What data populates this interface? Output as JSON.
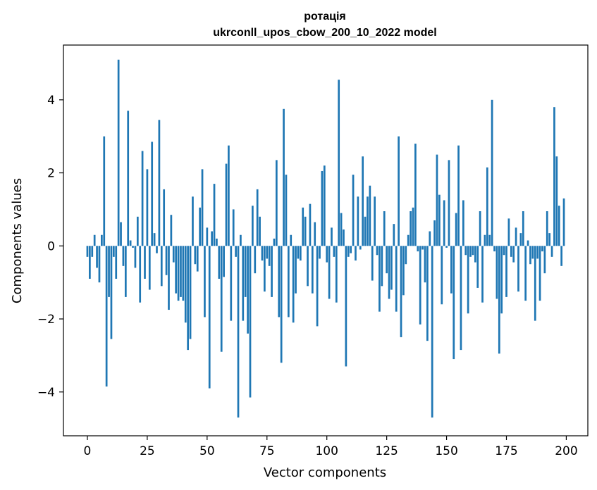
{
  "chart_data": {
    "type": "bar",
    "title": "ротація",
    "subtitle": "ukrconll_upos_cbow_200_10_2022 model",
    "xlabel": "Vector components",
    "ylabel": "Components values",
    "xlim": [
      -10,
      209
    ],
    "ylim": [
      -5.2,
      5.5
    ],
    "x_ticks": [
      0,
      25,
      50,
      75,
      100,
      125,
      150,
      175,
      200
    ],
    "y_ticks": [
      -4,
      -2,
      0,
      2,
      4
    ],
    "x_tick_labels": [
      "0",
      "25",
      "50",
      "75",
      "100",
      "125",
      "150",
      "175",
      "200"
    ],
    "y_tick_labels": [
      "−4",
      "−2",
      "0",
      "2",
      "4"
    ],
    "bar_color": "#1f77b4",
    "grid": false,
    "x": [
      0,
      1,
      2,
      3,
      4,
      5,
      6,
      7,
      8,
      9,
      10,
      11,
      12,
      13,
      14,
      15,
      16,
      17,
      18,
      19,
      20,
      21,
      22,
      23,
      24,
      25,
      26,
      27,
      28,
      29,
      30,
      31,
      32,
      33,
      34,
      35,
      36,
      37,
      38,
      39,
      40,
      41,
      42,
      43,
      44,
      45,
      46,
      47,
      48,
      49,
      50,
      51,
      52,
      53,
      54,
      55,
      56,
      57,
      58,
      59,
      60,
      61,
      62,
      63,
      64,
      65,
      66,
      67,
      68,
      69,
      70,
      71,
      72,
      73,
      74,
      75,
      76,
      77,
      78,
      79,
      80,
      81,
      82,
      83,
      84,
      85,
      86,
      87,
      88,
      89,
      90,
      91,
      92,
      93,
      94,
      95,
      96,
      97,
      98,
      99,
      100,
      101,
      102,
      103,
      104,
      105,
      106,
      107,
      108,
      109,
      110,
      111,
      112,
      113,
      114,
      115,
      116,
      117,
      118,
      119,
      120,
      121,
      122,
      123,
      124,
      125,
      126,
      127,
      128,
      129,
      130,
      131,
      132,
      133,
      134,
      135,
      136,
      137,
      138,
      139,
      140,
      141,
      142,
      143,
      144,
      145,
      146,
      147,
      148,
      149,
      150,
      151,
      152,
      153,
      154,
      155,
      156,
      157,
      158,
      159,
      160,
      161,
      162,
      163,
      164,
      165,
      166,
      167,
      168,
      169,
      170,
      171,
      172,
      173,
      174,
      175,
      176,
      177,
      178,
      179,
      180,
      181,
      182,
      183,
      184,
      185,
      186,
      187,
      188,
      189,
      190,
      191,
      192,
      193,
      194,
      195,
      196,
      197,
      198,
      199
    ],
    "values": [
      -0.3,
      -0.9,
      -0.3,
      0.3,
      -0.6,
      -1.0,
      0.3,
      3.0,
      -3.85,
      -1.4,
      -2.55,
      -0.3,
      -0.9,
      5.1,
      0.65,
      -0.55,
      -1.4,
      3.7,
      0.15,
      -0.05,
      -0.6,
      0.8,
      -1.55,
      2.6,
      -0.9,
      2.1,
      -1.2,
      2.85,
      0.35,
      -0.2,
      3.45,
      -1.1,
      1.55,
      -0.8,
      -1.75,
      0.85,
      -0.45,
      -1.3,
      -1.5,
      -1.4,
      -1.5,
      -2.1,
      -2.85,
      -2.55,
      1.35,
      -0.5,
      -0.7,
      1.05,
      2.1,
      -1.95,
      0.5,
      -3.9,
      0.4,
      1.7,
      0.2,
      -0.9,
      -2.9,
      -0.85,
      2.25,
      2.75,
      -2.05,
      1.0,
      -0.3,
      -4.7,
      0.3,
      -2.05,
      -1.4,
      -2.4,
      -4.15,
      1.1,
      -0.75,
      1.55,
      0.8,
      -0.4,
      -1.25,
      -0.35,
      -0.55,
      -1.4,
      0.2,
      2.35,
      -1.95,
      -3.2,
      3.75,
      1.95,
      -1.95,
      0.3,
      -2.1,
      -1.3,
      -0.35,
      -0.4,
      1.05,
      0.8,
      -1.1,
      1.15,
      -1.3,
      0.65,
      -2.2,
      -0.35,
      2.05,
      2.2,
      -0.45,
      -1.45,
      0.5,
      -0.3,
      -1.55,
      4.55,
      0.9,
      0.45,
      -3.3,
      -0.3,
      -0.2,
      1.95,
      -0.4,
      1.35,
      -0.1,
      2.45,
      0.8,
      1.35,
      1.65,
      -0.95,
      1.35,
      -0.25,
      -1.8,
      -1.1,
      0.95,
      -0.75,
      -1.45,
      -1.2,
      0.6,
      -1.8,
      3.0,
      -2.5,
      -1.35,
      -0.5,
      0.3,
      0.95,
      1.05,
      2.8,
      -0.15,
      -2.15,
      -0.1,
      -1.0,
      -2.6,
      0.4,
      -4.7,
      0.7,
      2.5,
      1.4,
      -1.6,
      1.25,
      -0.05,
      2.35,
      -1.3,
      -3.1,
      0.9,
      2.75,
      -2.85,
      1.25,
      -0.25,
      -1.85,
      -0.3,
      -0.25,
      -0.45,
      -1.15,
      0.95,
      -1.55,
      0.3,
      2.15,
      0.3,
      4.0,
      -0.15,
      -1.45,
      -2.95,
      -1.85,
      -0.25,
      -1.4,
      0.75,
      -0.3,
      -0.45,
      0.5,
      -1.25,
      0.35,
      0.95,
      -1.5,
      0.15,
      -0.5,
      -0.35,
      -2.05,
      -0.35,
      -1.5,
      -0.15,
      -0.75,
      0.95,
      0.35,
      -0.3,
      3.8,
      2.45,
      1.1,
      -0.55,
      1.3
    ]
  }
}
